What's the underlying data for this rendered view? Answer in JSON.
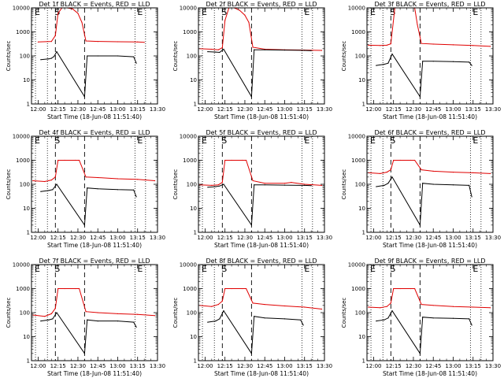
{
  "figure": {
    "common": {
      "type": "line",
      "xlabel": "Start Time (18-Jun-08 11:51:40)",
      "ylabel": "Counts/sec",
      "xlim": [
        "11:55",
        "13:30"
      ],
      "x_ticks": [
        "12:00",
        "12:15",
        "12:30",
        "12:45",
        "13:00",
        "13:15",
        "13:30"
      ],
      "y_scale": "log",
      "ylim": [
        1,
        10000
      ],
      "y_ticks": [
        "1",
        "10",
        "100",
        "1000",
        "10000"
      ],
      "interval_labels": [
        "E",
        "S",
        "E"
      ],
      "dotted_lines": [
        "11:58",
        "12:07",
        "13:13",
        "13:21"
      ],
      "dashed_lines": [
        "12:13",
        "12:35"
      ],
      "colors": {
        "events": "#000000",
        "lld": "#e00000",
        "axes": "#000000"
      }
    },
    "panels": [
      {
        "title": "Det 1f BLACK = Events, RED = LLD",
        "chart_data": {
          "type": "line",
          "series": [
            {
              "name": "RED = LLD",
              "color": "#e00000",
              "x": [
                "12:00",
                "12:10",
                "12:13",
                "12:15",
                "12:18",
                "12:22",
                "12:26",
                "12:30",
                "12:33",
                "12:36",
                "12:45",
                "13:00",
                "13:15",
                "13:20"
              ],
              "y": [
                380,
                400,
                700,
                6000,
                10000,
                10000,
                9000,
                6000,
                2500,
                420,
                400,
                390,
                380,
                370
              ]
            },
            {
              "name": "BLACK = Events",
              "color": "#000000",
              "x": [
                "12:02",
                "12:08",
                "12:10",
                "12:12",
                "12:14",
                "12:35",
                "12:37",
                "12:45",
                "13:00",
                "13:12",
                "13:14"
              ],
              "y": [
                70,
                75,
                80,
                95,
                150,
                2,
                100,
                100,
                100,
                92,
                50
              ]
            }
          ]
        }
      },
      {
        "title": "Det 2f BLACK = Events, RED = LLD",
        "chart_data": {
          "type": "line",
          "series": [
            {
              "name": "RED = LLD",
              "color": "#e00000",
              "x": [
                "11:56",
                "12:05",
                "12:10",
                "12:13",
                "12:15",
                "12:18",
                "12:22",
                "12:26",
                "12:30",
                "12:33",
                "12:36",
                "12:45",
                "13:00",
                "13:15",
                "13:28"
              ],
              "y": [
                200,
                190,
                180,
                220,
                3000,
                10000,
                10000,
                8000,
                5000,
                2500,
                230,
                190,
                180,
                175,
                170
              ]
            },
            {
              "name": "BLACK = Events",
              "color": "#000000",
              "x": [
                "12:02",
                "12:08",
                "12:11",
                "12:14",
                "12:35",
                "12:37",
                "12:45",
                "13:00",
                "13:15",
                "13:20"
              ],
              "y": [
                150,
                145,
                140,
                190,
                2,
                180,
                180,
                175,
                170,
                165
              ]
            }
          ]
        }
      },
      {
        "title": "Det 3f BLACK = Events, RED = LLD",
        "chart_data": {
          "type": "line",
          "series": [
            {
              "name": "RED = LLD",
              "color": "#e00000",
              "x": [
                "11:56",
                "12:05",
                "12:10",
                "12:13",
                "12:16",
                "12:20",
                "12:25",
                "12:31",
                "12:33",
                "12:36",
                "12:45",
                "13:00",
                "13:15",
                "13:28"
              ],
              "y": [
                280,
                270,
                280,
                320,
                10000,
                10000,
                10000,
                10000,
                2000,
                330,
                310,
                290,
                270,
                250
              ]
            },
            {
              "name": "BLACK = Events",
              "color": "#000000",
              "x": [
                "12:02",
                "12:08",
                "12:11",
                "12:14",
                "12:35",
                "12:37",
                "12:45",
                "13:00",
                "13:12",
                "13:14"
              ],
              "y": [
                40,
                45,
                50,
                120,
                2,
                60,
                60,
                58,
                55,
                40
              ]
            }
          ]
        }
      },
      {
        "title": "Det 4f BLACK = Events, RED = LLD",
        "chart_data": {
          "type": "line",
          "series": [
            {
              "name": "RED = LLD",
              "color": "#e00000",
              "x": [
                "11:56",
                "12:05",
                "12:10",
                "12:13",
                "12:15",
                "12:20",
                "12:28",
                "12:31",
                "12:36",
                "12:45",
                "13:00",
                "13:15",
                "13:28"
              ],
              "y": [
                140,
                130,
                150,
                200,
                1000,
                1000,
                1000,
                1000,
                200,
                190,
                170,
                160,
                140
              ]
            },
            {
              "name": "BLACK = Events",
              "color": "#000000",
              "x": [
                "12:02",
                "12:08",
                "12:11",
                "12:14",
                "12:35",
                "12:37",
                "12:45",
                "13:00",
                "13:12",
                "13:14"
              ],
              "y": [
                50,
                55,
                60,
                100,
                2,
                70,
                65,
                60,
                58,
                30
              ]
            }
          ]
        }
      },
      {
        "title": "Det 5f BLACK = Events, RED = LLD",
        "chart_data": {
          "type": "line",
          "series": [
            {
              "name": "RED = LLD",
              "color": "#e00000",
              "x": [
                "11:56",
                "12:05",
                "12:10",
                "12:13",
                "12:15",
                "12:20",
                "12:28",
                "12:31",
                "12:36",
                "12:45",
                "13:00",
                "13:05",
                "13:15",
                "13:28"
              ],
              "y": [
                95,
                90,
                95,
                120,
                1000,
                1000,
                1000,
                1000,
                140,
                110,
                110,
                120,
                100,
                90
              ]
            },
            {
              "name": "BLACK = Events",
              "color": "#000000",
              "x": [
                "12:02",
                "12:08",
                "12:11",
                "12:14",
                "12:35",
                "12:37",
                "12:45",
                "13:00",
                "13:15",
                "13:20"
              ],
              "y": [
                75,
                80,
                85,
                100,
                2,
                95,
                95,
                92,
                90,
                88
              ]
            }
          ]
        }
      },
      {
        "title": "Det 6f BLACK = Events, RED = LLD",
        "chart_data": {
          "type": "line",
          "series": [
            {
              "name": "RED = LLD",
              "color": "#e00000",
              "x": [
                "11:56",
                "12:05",
                "12:10",
                "12:13",
                "12:15",
                "12:20",
                "12:28",
                "12:31",
                "12:36",
                "12:45",
                "13:00",
                "13:15",
                "13:28"
              ],
              "y": [
                300,
                280,
                320,
                400,
                1000,
                1000,
                1000,
                1000,
                400,
                350,
                320,
                300,
                280
              ]
            },
            {
              "name": "BLACK = Events",
              "color": "#000000",
              "x": [
                "12:02",
                "12:08",
                "12:11",
                "12:14",
                "12:35",
                "12:37",
                "12:45",
                "13:00",
                "13:12",
                "13:14"
              ],
              "y": [
                80,
                90,
                110,
                200,
                2,
                110,
                100,
                95,
                90,
                30
              ]
            }
          ]
        }
      },
      {
        "title": "Det 7f BLACK = Events, RED = LLD",
        "chart_data": {
          "type": "line",
          "series": [
            {
              "name": "RED = LLD",
              "color": "#e00000",
              "x": [
                "11:56",
                "12:05",
                "12:10",
                "12:13",
                "12:15",
                "12:20",
                "12:28",
                "12:31",
                "12:36",
                "12:45",
                "13:00",
                "13:15",
                "13:28"
              ],
              "y": [
                80,
                70,
                90,
                150,
                1000,
                1000,
                1000,
                1000,
                110,
                100,
                90,
                85,
                75
              ]
            },
            {
              "name": "BLACK = Events",
              "color": "#000000",
              "x": [
                "12:02",
                "12:08",
                "12:11",
                "12:14",
                "12:35",
                "12:37",
                "12:45",
                "13:00",
                "13:12",
                "13:14"
              ],
              "y": [
                45,
                50,
                55,
                100,
                2,
                50,
                45,
                45,
                40,
                25
              ]
            }
          ]
        }
      },
      {
        "title": "Det 8f BLACK = Events, RED = LLD",
        "chart_data": {
          "type": "line",
          "series": [
            {
              "name": "RED = LLD",
              "color": "#e00000",
              "x": [
                "11:56",
                "12:05",
                "12:10",
                "12:13",
                "12:15",
                "12:20",
                "12:28",
                "12:31",
                "12:36",
                "12:45",
                "13:00",
                "13:15",
                "13:28"
              ],
              "y": [
                200,
                180,
                220,
                300,
                1000,
                1000,
                1000,
                1000,
                250,
                220,
                190,
                170,
                140
              ]
            },
            {
              "name": "BLACK = Events",
              "color": "#000000",
              "x": [
                "12:02",
                "12:08",
                "12:11",
                "12:14",
                "12:35",
                "12:37",
                "12:45",
                "13:00",
                "13:12",
                "13:14"
              ],
              "y": [
                40,
                45,
                55,
                120,
                2,
                70,
                60,
                55,
                50,
                30
              ]
            }
          ]
        }
      },
      {
        "title": "Det 9f BLACK = Events, RED = LLD",
        "chart_data": {
          "type": "line",
          "series": [
            {
              "name": "RED = LLD",
              "color": "#e00000",
              "x": [
                "11:56",
                "12:05",
                "12:10",
                "12:13",
                "12:15",
                "12:20",
                "12:28",
                "12:31",
                "12:36",
                "12:45",
                "13:00",
                "13:15",
                "13:28"
              ],
              "y": [
                170,
                160,
                180,
                250,
                1000,
                1000,
                1000,
                1000,
                220,
                200,
                180,
                170,
                160
              ]
            },
            {
              "name": "BLACK = Events",
              "color": "#000000",
              "x": [
                "12:02",
                "12:08",
                "12:11",
                "12:14",
                "12:35",
                "12:37",
                "12:45",
                "13:00",
                "13:12",
                "13:14"
              ],
              "y": [
                45,
                50,
                60,
                120,
                2,
                65,
                60,
                58,
                55,
                30
              ]
            }
          ]
        }
      }
    ]
  }
}
